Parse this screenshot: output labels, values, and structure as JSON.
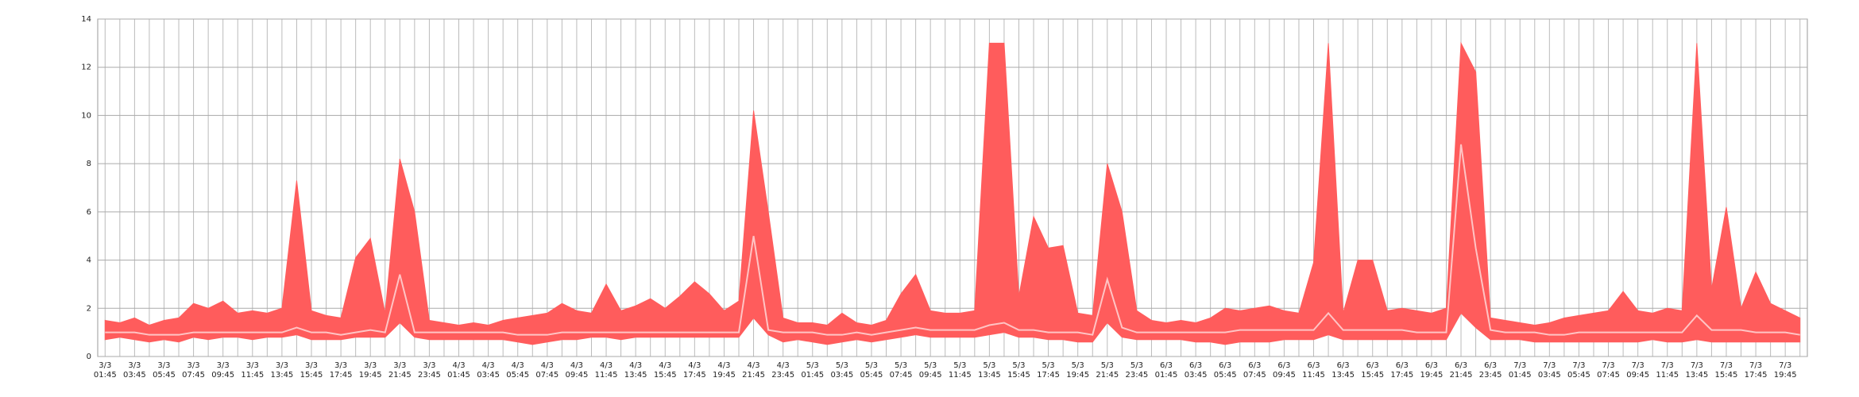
{
  "chart_data": {
    "type": "band-line",
    "categories": [
      [
        "3/3",
        "01:45"
      ],
      null,
      [
        "3/3",
        "03:45"
      ],
      null,
      [
        "3/3",
        "05:45"
      ],
      null,
      [
        "3/3",
        "07:45"
      ],
      null,
      [
        "3/3",
        "09:45"
      ],
      null,
      [
        "3/3",
        "11:45"
      ],
      null,
      [
        "3/3",
        "13:45"
      ],
      null,
      [
        "3/3",
        "15:45"
      ],
      null,
      [
        "3/3",
        "17:45"
      ],
      null,
      [
        "3/3",
        "19:45"
      ],
      null,
      [
        "3/3",
        "21:45"
      ],
      null,
      [
        "3/3",
        "23:45"
      ],
      null,
      [
        "4/3",
        "01:45"
      ],
      null,
      [
        "4/3",
        "03:45"
      ],
      null,
      [
        "4/3",
        "05:45"
      ],
      null,
      [
        "4/3",
        "07:45"
      ],
      null,
      [
        "4/3",
        "09:45"
      ],
      null,
      [
        "4/3",
        "11:45"
      ],
      null,
      [
        "4/3",
        "13:45"
      ],
      null,
      [
        "4/3",
        "15:45"
      ],
      null,
      [
        "4/3",
        "17:45"
      ],
      null,
      [
        "4/3",
        "19:45"
      ],
      null,
      [
        "4/3",
        "21:45"
      ],
      null,
      [
        "4/3",
        "23:45"
      ],
      null,
      [
        "5/3",
        "01:45"
      ],
      null,
      [
        "5/3",
        "03:45"
      ],
      null,
      [
        "5/3",
        "05:45"
      ],
      null,
      [
        "5/3",
        "07:45"
      ],
      null,
      [
        "5/3",
        "09:45"
      ],
      null,
      [
        "5/3",
        "11:45"
      ],
      null,
      [
        "5/3",
        "13:45"
      ],
      null,
      [
        "5/3",
        "15:45"
      ],
      null,
      [
        "5/3",
        "17:45"
      ],
      null,
      [
        "5/3",
        "19:45"
      ],
      null,
      [
        "5/3",
        "21:45"
      ],
      null,
      [
        "5/3",
        "23:45"
      ],
      null,
      [
        "6/3",
        "01:45"
      ],
      null,
      [
        "6/3",
        "03:45"
      ],
      null,
      [
        "6/3",
        "05:45"
      ],
      null,
      [
        "6/3",
        "07:45"
      ],
      null,
      [
        "6/3",
        "09:45"
      ],
      null,
      [
        "6/3",
        "11:45"
      ],
      null,
      [
        "6/3",
        "13:45"
      ],
      null,
      [
        "6/3",
        "15:45"
      ],
      null,
      [
        "6/3",
        "17:45"
      ],
      null,
      [
        "6/3",
        "19:45"
      ],
      null,
      [
        "6/3",
        "21:45"
      ],
      null,
      [
        "6/3",
        "23:45"
      ],
      null,
      [
        "7/3",
        "01:45"
      ],
      null,
      [
        "7/3",
        "03:45"
      ],
      null,
      [
        "7/3",
        "05:45"
      ],
      null,
      [
        "7/3",
        "07:45"
      ],
      null,
      [
        "7/3",
        "09:45"
      ],
      null,
      [
        "7/3",
        "11:45"
      ],
      null,
      [
        "7/3",
        "13:45"
      ],
      null,
      [
        "7/3",
        "15:45"
      ],
      null,
      [
        "7/3",
        "17:45"
      ],
      null,
      [
        "7/3",
        "19:45"
      ],
      null
    ],
    "band": {
      "color": "#ff5c5c",
      "high": [
        1.5,
        1.4,
        1.6,
        1.3,
        1.5,
        1.6,
        2.2,
        2.0,
        2.3,
        1.8,
        1.9,
        1.8,
        2.0,
        7.3,
        1.9,
        1.7,
        1.6,
        4.1,
        4.9,
        1.8,
        8.2,
        6.0,
        1.5,
        1.4,
        1.3,
        1.4,
        1.3,
        1.5,
        1.6,
        1.7,
        1.8,
        2.2,
        1.9,
        1.8,
        3.0,
        1.9,
        2.1,
        2.4,
        2.0,
        2.5,
        3.1,
        2.6,
        1.9,
        2.3,
        10.2,
        6.0,
        1.6,
        1.4,
        1.4,
        1.3,
        1.8,
        1.4,
        1.3,
        1.5,
        2.6,
        3.4,
        1.9,
        1.8,
        1.8,
        1.9,
        13,
        13,
        2.5,
        5.8,
        4.5,
        4.6,
        1.8,
        1.7,
        8.0,
        6.0,
        1.9,
        1.5,
        1.4,
        1.5,
        1.4,
        1.6,
        2.0,
        1.9,
        2.0,
        2.1,
        1.9,
        1.8,
        3.9,
        13,
        1.8,
        4.0,
        4.0,
        1.9,
        2.0,
        1.9,
        1.8,
        2.0,
        13,
        11.8,
        1.6,
        1.5,
        1.4,
        1.3,
        1.4,
        1.6,
        1.7,
        1.8,
        1.9,
        2.7,
        1.9,
        1.8,
        2.0,
        1.9,
        13,
        2.8,
        6.2,
        2.0,
        3.5,
        2.2,
        1.9,
        1.6
      ],
      "low": [
        0.7,
        0.8,
        0.7,
        0.6,
        0.7,
        0.6,
        0.8,
        0.7,
        0.8,
        0.8,
        0.7,
        0.8,
        0.8,
        0.9,
        0.7,
        0.7,
        0.7,
        0.8,
        0.8,
        0.8,
        1.4,
        0.8,
        0.7,
        0.7,
        0.7,
        0.7,
        0.7,
        0.7,
        0.6,
        0.5,
        0.6,
        0.7,
        0.7,
        0.8,
        0.8,
        0.7,
        0.8,
        0.8,
        0.8,
        0.8,
        0.8,
        0.8,
        0.8,
        0.8,
        1.6,
        0.9,
        0.6,
        0.7,
        0.6,
        0.5,
        0.6,
        0.7,
        0.6,
        0.7,
        0.8,
        0.9,
        0.8,
        0.8,
        0.8,
        0.8,
        0.9,
        1.0,
        0.8,
        0.8,
        0.7,
        0.7,
        0.6,
        0.6,
        1.4,
        0.8,
        0.7,
        0.7,
        0.7,
        0.7,
        0.6,
        0.6,
        0.5,
        0.6,
        0.6,
        0.6,
        0.7,
        0.7,
        0.7,
        0.9,
        0.7,
        0.7,
        0.7,
        0.7,
        0.7,
        0.7,
        0.7,
        0.7,
        1.8,
        1.2,
        0.7,
        0.7,
        0.7,
        0.6,
        0.6,
        0.6,
        0.6,
        0.6,
        0.6,
        0.6,
        0.6,
        0.7,
        0.6,
        0.6,
        0.7,
        0.6,
        0.6,
        0.6,
        0.6,
        0.6,
        0.6,
        0.6
      ]
    },
    "series": [
      {
        "color": "#ffc4c4",
        "values": [
          1.0,
          1.0,
          1.0,
          0.9,
          0.9,
          0.9,
          1.0,
          1.0,
          1.0,
          1.0,
          1.0,
          1.0,
          1.0,
          1.2,
          1.0,
          1.0,
          0.9,
          1.0,
          1.1,
          1.0,
          3.4,
          1.0,
          1.0,
          1.0,
          1.0,
          1.0,
          1.0,
          1.0,
          0.9,
          0.9,
          0.9,
          1.0,
          1.0,
          1.0,
          1.0,
          1.0,
          1.0,
          1.0,
          1.0,
          1.0,
          1.0,
          1.0,
          1.0,
          1.0,
          5.0,
          1.1,
          1.0,
          1.0,
          1.0,
          0.9,
          0.9,
          1.0,
          0.9,
          1.0,
          1.1,
          1.2,
          1.1,
          1.1,
          1.1,
          1.1,
          1.3,
          1.4,
          1.1,
          1.1,
          1.0,
          1.0,
          1.0,
          0.9,
          3.2,
          1.2,
          1.0,
          1.0,
          1.0,
          1.0,
          1.0,
          1.0,
          1.0,
          1.1,
          1.1,
          1.1,
          1.1,
          1.1,
          1.1,
          1.8,
          1.1,
          1.1,
          1.1,
          1.1,
          1.1,
          1.0,
          1.0,
          1.0,
          8.8,
          4.5,
          1.1,
          1.0,
          1.0,
          1.0,
          0.9,
          0.9,
          1.0,
          1.0,
          1.0,
          1.0,
          1.0,
          1.0,
          1.0,
          1.0,
          1.7,
          1.1,
          1.1,
          1.1,
          1.0,
          1.0,
          1.0,
          0.9
        ]
      }
    ],
    "ylim": [
      0,
      14
    ],
    "yticks": [
      0,
      2,
      4,
      6,
      8,
      10,
      12,
      14
    ],
    "grid": true
  }
}
